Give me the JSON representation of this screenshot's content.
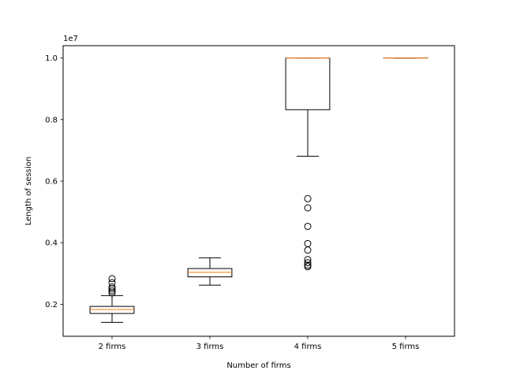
{
  "chart_data": {
    "type": "boxplot",
    "xlabel": "Number of firms",
    "ylabel": "Length of session",
    "y_offset_label": "1e7",
    "ylim": [
      0.096,
      1.04
    ],
    "yticks": [
      0.2,
      0.4,
      0.6,
      0.8,
      1.0
    ],
    "ytick_labels": [
      "0.2",
      "0.4",
      "0.6",
      "0.8",
      "1.0"
    ],
    "categories": [
      "2 firms",
      "3 firms",
      "4 firms",
      "5 firms"
    ],
    "boxes": [
      {
        "category": "2 firms",
        "whisker_low": 0.141,
        "q1": 0.17,
        "median": 0.183,
        "q3": 0.193,
        "whisker_high": 0.228,
        "outliers": [
          0.237,
          0.243,
          0.25,
          0.256,
          0.27,
          0.283
        ]
      },
      {
        "category": "3 firms",
        "whisker_low": 0.262,
        "q1": 0.289,
        "median": 0.304,
        "q3": 0.316,
        "whisker_high": 0.351,
        "outliers": []
      },
      {
        "category": "4 firms",
        "whisker_low": 0.681,
        "q1": 0.832,
        "median": 1.0,
        "q3": 1.0,
        "whisker_high": 1.0,
        "outliers": [
          0.322,
          0.327,
          0.335,
          0.345,
          0.376,
          0.397,
          0.453,
          0.513,
          0.543
        ]
      },
      {
        "category": "5 firms",
        "whisker_low": 1.0,
        "q1": 1.0,
        "median": 1.0,
        "q3": 1.0,
        "whisker_high": 1.0,
        "outliers": []
      }
    ],
    "grid": false,
    "colors": {
      "box": "#000000",
      "median": "#ff7f0e",
      "outlier": "#000000"
    }
  }
}
